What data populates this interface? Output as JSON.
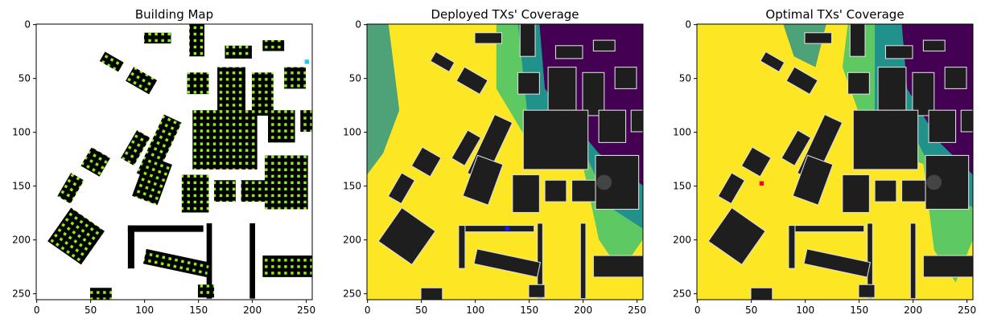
{
  "chart_data": [
    {
      "type": "image",
      "title": "Building Map",
      "xlim": [
        -0.5,
        255.5
      ],
      "ylim": [
        255.5,
        -0.5
      ],
      "xticks": [
        0,
        50,
        100,
        150,
        200,
        250
      ],
      "yticks": [
        0,
        50,
        100,
        150,
        200,
        250
      ]
    },
    {
      "type": "image",
      "title": "Deployed TXs' Coverage",
      "xlim": [
        -0.5,
        255.5
      ],
      "ylim": [
        255.5,
        -0.5
      ],
      "xticks": [
        0,
        50,
        100,
        150,
        200,
        250
      ],
      "yticks": [
        0,
        50,
        100,
        150,
        200,
        250
      ]
    },
    {
      "type": "image",
      "title": "Optimal TXs' Coverage",
      "xlim": [
        -0.5,
        255.5
      ],
      "ylim": [
        255.5,
        -0.5
      ],
      "xticks": [
        0,
        50,
        100,
        150,
        200,
        250
      ],
      "yticks": [
        0,
        50,
        100,
        150,
        200,
        250
      ]
    }
  ]
}
